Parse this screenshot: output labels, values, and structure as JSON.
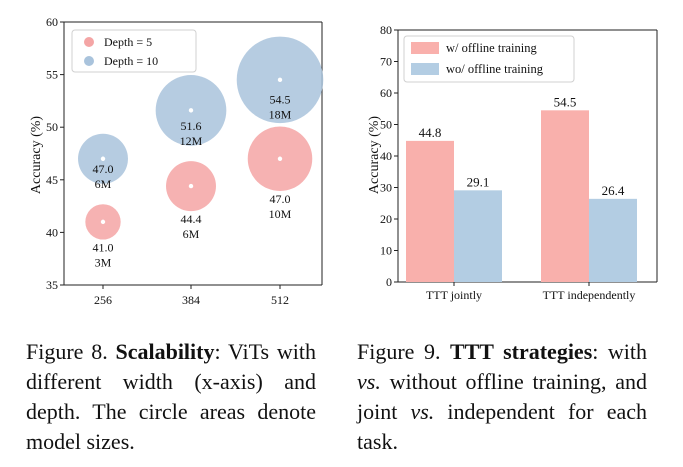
{
  "chart_data": [
    {
      "type": "scatter",
      "title": "",
      "xlabel": "",
      "ylabel": "Accuracy (%)",
      "ylim": [
        35,
        60
      ],
      "yticks": [
        "35",
        "40",
        "45",
        "50",
        "55",
        "60"
      ],
      "categories": [
        "256",
        "384",
        "512"
      ],
      "legend": {
        "placement": "top-left",
        "entries": [
          {
            "name": "Depth = 5",
            "color": "#f4a5a5"
          },
          {
            "name": "Depth = 10",
            "color": "#a9c3dc"
          }
        ]
      },
      "series": [
        {
          "name": "Depth = 5",
          "color": "#f4a5a5",
          "points": [
            {
              "x": "256",
              "y": 41.0,
              "value_label": "41.0",
              "size_label": "3M",
              "size": 3
            },
            {
              "x": "384",
              "y": 44.4,
              "value_label": "44.4",
              "size_label": "6M",
              "size": 6
            },
            {
              "x": "512",
              "y": 47.0,
              "value_label": "47.0",
              "size_label": "10M",
              "size": 10
            }
          ]
        },
        {
          "name": "Depth = 10",
          "color": "#a9c3dc",
          "points": [
            {
              "x": "256",
              "y": 47.0,
              "value_label": "47.0",
              "size_label": "6M",
              "size": 6
            },
            {
              "x": "384",
              "y": 51.6,
              "value_label": "51.6",
              "size_label": "12M",
              "size": 12
            },
            {
              "x": "512",
              "y": 54.5,
              "value_label": "54.5",
              "size_label": "18M",
              "size": 18
            }
          ]
        }
      ]
    },
    {
      "type": "bar",
      "title": "",
      "xlabel": "",
      "ylabel": "Accuracy (%)",
      "ylim": [
        0,
        80
      ],
      "yticks": [
        "0",
        "10",
        "20",
        "30",
        "40",
        "50",
        "60",
        "70",
        "80"
      ],
      "categories": [
        "TTT jointly",
        "TTT independently"
      ],
      "legend": {
        "placement": "top-left",
        "entries": [
          {
            "name": "w/ offline training",
            "color": "#f9b0ac"
          },
          {
            "name": "wo/ offline training",
            "color": "#b3cde3"
          }
        ]
      },
      "series": [
        {
          "name": "w/ offline training",
          "color": "#f9b0ac",
          "values": [
            44.8,
            54.5
          ],
          "labels": [
            "44.8",
            "54.5"
          ]
        },
        {
          "name": "wo/ offline training",
          "color": "#b3cde3",
          "values": [
            29.1,
            26.4
          ],
          "labels": [
            "29.1",
            "26.4"
          ]
        }
      ]
    }
  ],
  "captions": {
    "fig8": {
      "label": "Figure 8.",
      "title": "Scalability",
      "text": ": ViTs with different width (x-axis) and depth. The circle areas denote model sizes."
    },
    "fig9": {
      "label": "Figure 9.",
      "title": "TTT strategies",
      "text_1": ": with ",
      "vs_1": "vs.",
      "text_2": " without offline training, and joint ",
      "vs_2": "vs.",
      "text_3": " independent for each task."
    }
  }
}
